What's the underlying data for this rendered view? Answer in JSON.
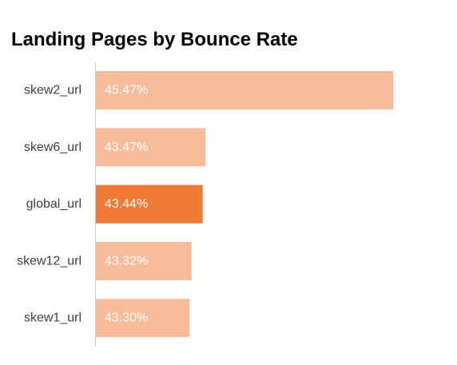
{
  "chart_data": {
    "type": "bar",
    "orientation": "horizontal",
    "title": "Landing Pages by Bounce Rate",
    "xlabel": "",
    "ylabel": "",
    "categories": [
      "skew2_url",
      "skew6_url",
      "global_url",
      "skew12_url",
      "skew1_url"
    ],
    "values": [
      45.47,
      43.47,
      43.44,
      43.32,
      43.3
    ],
    "data_labels": [
      "45.47%",
      "43.47%",
      "43.44%",
      "43.32%",
      "43.30%"
    ],
    "highlight_category": "global_url",
    "xlim": [
      42.3,
      46.0
    ],
    "grid": false,
    "colors": {
      "bar": "#f7bc99",
      "highlight": "#ef7b36",
      "axis": "#c8c8c8"
    }
  }
}
